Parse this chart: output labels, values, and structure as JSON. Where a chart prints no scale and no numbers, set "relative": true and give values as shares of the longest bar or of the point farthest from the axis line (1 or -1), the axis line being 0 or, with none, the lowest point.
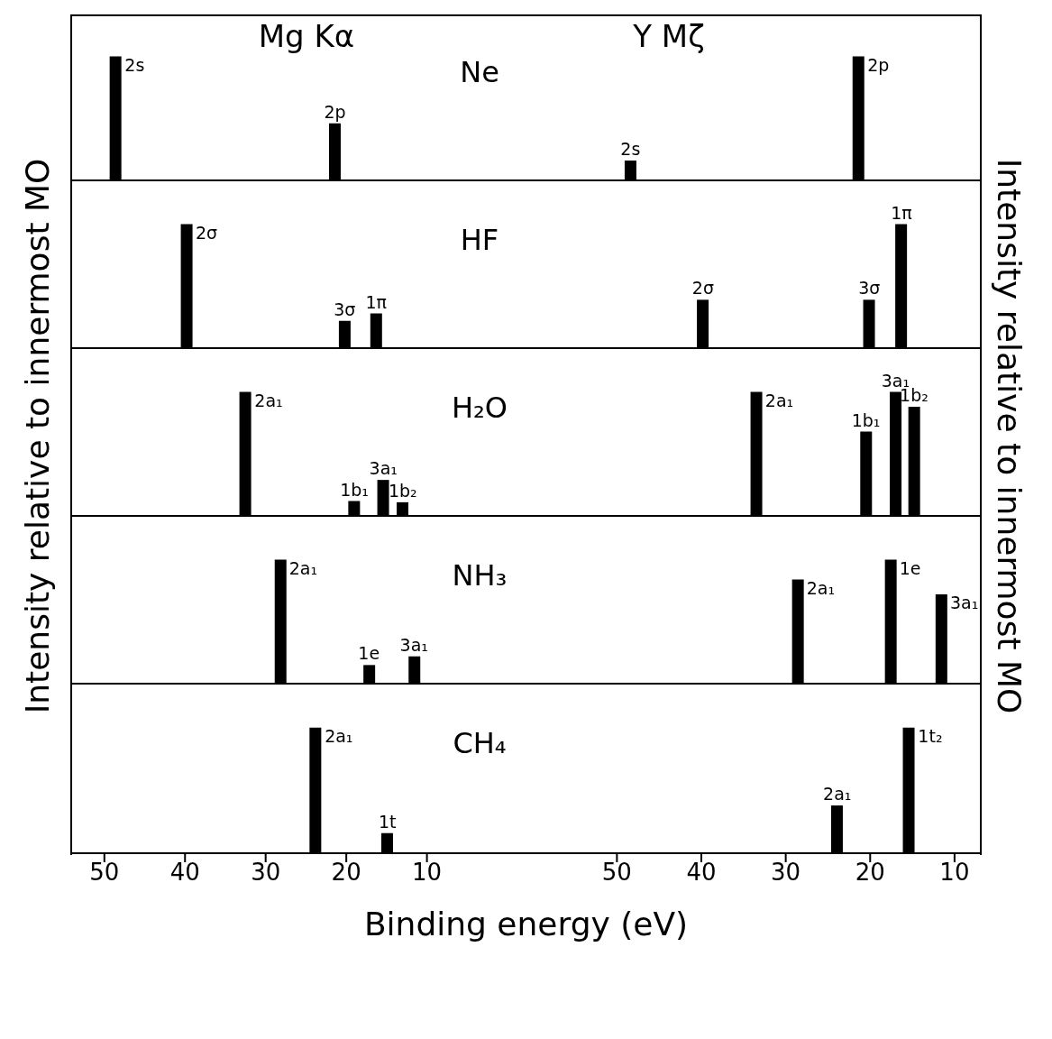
{
  "chart_data": [
    {
      "type": "bar",
      "title": "Ne",
      "ylabel": "Intensity relative to innermost MO",
      "x": [
        48.6,
        21.4
      ],
      "values": [
        1,
        0.46
      ],
      "color": "#000000",
      "relative": true,
      "xlim": [
        54,
        -1
      ],
      "xticks": [
        50,
        40,
        30,
        20,
        10
      ],
      "tick_labels": false,
      "annotations": [
        "Mg Kα",
        {
          "text": "2s",
          "x": 48.6,
          "y": 1
        },
        {
          "text": "2p",
          "x": 21.4,
          "y": 0.46
        }
      ]
    },
    {
      "type": "bar",
      "ylabel": "Intensity relative to innermost MO",
      "x": [
        48.4,
        21.4
      ],
      "values": [
        0.16,
        1
      ],
      "color": "#000000",
      "relative": true,
      "xlim": [
        62,
        7
      ],
      "xticks": [
        50,
        40,
        30,
        20,
        10
      ],
      "tick_labels": false,
      "annotations": [
        "Y Mζ",
        {
          "text": "2s",
          "x": 48.4,
          "y": 0.16
        },
        {
          "text": "2p",
          "x": 21.4,
          "y": 1
        }
      ]
    },
    {
      "type": "bar",
      "title": "HF",
      "x": [
        39.8,
        20.2,
        16.3
      ],
      "values": [
        1,
        0.22,
        0.28
      ],
      "color": "#000000",
      "relative": true,
      "xlim": [
        54,
        -1
      ],
      "xticks": [
        50,
        40,
        30,
        20,
        10
      ],
      "tick_labels": false,
      "annotations": [
        {
          "text": "2σ",
          "x": 39.8,
          "y": 1
        },
        {
          "text": "3σ",
          "x": 20.2,
          "y": 0.22
        },
        {
          "text": "1π",
          "x": 16.3,
          "y": 0.28
        }
      ]
    },
    {
      "type": "bar",
      "x": [
        39.8,
        20.1,
        16.3
      ],
      "values": [
        0.39,
        0.39,
        1
      ],
      "color": "#000000",
      "relative": true,
      "xlim": [
        62,
        7
      ],
      "xticks": [
        50,
        40,
        30,
        20,
        10
      ],
      "tick_labels": false,
      "annotations": [
        {
          "text": "2σ",
          "x": 39.8,
          "y": 0.39
        },
        {
          "text": "3σ",
          "x": 20.1,
          "y": 0.39
        },
        {
          "text": "1π",
          "x": 16.3,
          "y": 1
        }
      ]
    },
    {
      "type": "bar",
      "title": "H₂O",
      "x": [
        32.5,
        19.0,
        15.4,
        13.0
      ],
      "values": [
        1,
        0.12,
        0.29,
        0.11
      ],
      "color": "#000000",
      "relative": true,
      "xlim": [
        54,
        -1
      ],
      "xticks": [
        50,
        40,
        30,
        20,
        10
      ],
      "tick_labels": false,
      "annotations": [
        {
          "text": "2a₁",
          "x": 32.5,
          "y": 1
        },
        {
          "text": "1b₁",
          "x": 19.0,
          "y": 0.12
        },
        {
          "text": "3a₁",
          "x": 15.4,
          "y": 0.29
        },
        {
          "text": "1b₂",
          "x": 13.0,
          "y": 0.11
        }
      ]
    },
    {
      "type": "bar",
      "x": [
        33.5,
        20.5,
        17.0,
        14.8
      ],
      "values": [
        1,
        0.68,
        1,
        0.88
      ],
      "color": "#000000",
      "relative": true,
      "xlim": [
        62,
        7
      ],
      "xticks": [
        50,
        40,
        30,
        20,
        10
      ],
      "tick_labels": false,
      "annotations": [
        {
          "text": "2a₁",
          "x": 33.5,
          "y": 1
        },
        {
          "text": "1b₁",
          "x": 20.5,
          "y": 0.68
        },
        {
          "text": "3a₁",
          "x": 17.0,
          "y": 1
        },
        {
          "text": "1b₂",
          "x": 14.8,
          "y": 0.88
        }
      ]
    },
    {
      "type": "bar",
      "title": "NH₃",
      "x": [
        28.2,
        17.2,
        11.6
      ],
      "values": [
        1,
        0.15,
        0.22
      ],
      "color": "#000000",
      "relative": true,
      "xlim": [
        54,
        -1
      ],
      "xticks": [
        50,
        40,
        30,
        20,
        10
      ],
      "tick_labels": false,
      "annotations": [
        {
          "text": "2a₁",
          "x": 28.2,
          "y": 1
        },
        {
          "text": "1e",
          "x": 17.2,
          "y": 0.15
        },
        {
          "text": "3a₁",
          "x": 11.6,
          "y": 0.22
        }
      ]
    },
    {
      "type": "bar",
      "x": [
        28.6,
        17.6,
        11.6
      ],
      "values": [
        0.84,
        1,
        0.72
      ],
      "color": "#000000",
      "relative": true,
      "xlim": [
        62,
        7
      ],
      "xticks": [
        50,
        40,
        30,
        20,
        10
      ],
      "tick_labels": false,
      "annotations": [
        {
          "text": "2a₁",
          "x": 28.6,
          "y": 0.84
        },
        {
          "text": "1e",
          "x": 17.6,
          "y": 1
        },
        {
          "text": "3a₁",
          "x": 11.6,
          "y": 0.72
        }
      ]
    },
    {
      "type": "bar",
      "title": "CH₄",
      "xlabel": "Binding energy (eV)",
      "x": [
        23.8,
        14.9
      ],
      "values": [
        1,
        0.16
      ],
      "color": "#000000",
      "relative": true,
      "xlim": [
        54,
        -1
      ],
      "xticks": [
        50,
        40,
        30,
        20,
        10
      ],
      "tick_labels": "x",
      "annotations": [
        {
          "text": "2a₁",
          "x": 23.8,
          "y": 1
        },
        {
          "text": "1t",
          "x": 14.9,
          "y": 0.16
        }
      ]
    },
    {
      "type": "bar",
      "x": [
        23.9,
        15.4
      ],
      "values": [
        0.38,
        1
      ],
      "color": "#000000",
      "relative": true,
      "xlim": [
        62,
        7
      ],
      "xticks": [
        50,
        40,
        30,
        20,
        10
      ],
      "tick_labels": "x",
      "annotations": [
        {
          "text": "2a₁",
          "x": 23.9,
          "y": 0.38
        },
        {
          "text": "1t₂",
          "x": 15.4,
          "y": 1
        }
      ]
    }
  ]
}
